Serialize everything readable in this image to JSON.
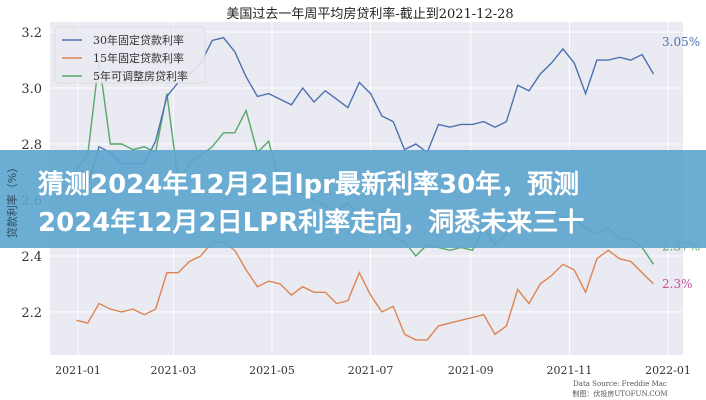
{
  "chart_data": {
    "type": "line",
    "title": "美国过去一年周平均房贷利率-截止到2021-12-28",
    "xlabel": "",
    "ylabel": "贷款利率（%）",
    "ylim": [
      2.046,
      3.236
    ],
    "yticks": [
      2.2,
      2.4,
      2.6,
      2.8,
      3.0,
      3.2
    ],
    "ytick_labels": [
      "2.2",
      "2.4",
      "2.6",
      "2.8",
      "3.0",
      "3.2"
    ],
    "xticks": [
      "2021-01",
      "2021-03",
      "2021-05",
      "2021-07",
      "2021-09",
      "2021-11",
      "2022-01"
    ],
    "start_date": "2020-12-31",
    "interval_days": 7,
    "grid": true,
    "legend_position": "top-left",
    "series": [
      {
        "name": "30年固定贷款利率",
        "color": "#4c72b0",
        "end_label": "3.05%",
        "values": [
          2.67,
          2.65,
          2.79,
          2.77,
          2.73,
          2.73,
          2.73,
          2.81,
          2.97,
          3.02,
          3.05,
          3.09,
          3.17,
          3.18,
          3.13,
          3.04,
          2.97,
          2.98,
          2.96,
          2.94,
          3.0,
          2.95,
          2.99,
          2.96,
          2.93,
          3.02,
          2.98,
          2.9,
          2.88,
          2.78,
          2.8,
          2.77,
          2.87,
          2.86,
          2.87,
          2.87,
          2.88,
          2.86,
          2.88,
          3.01,
          2.99,
          3.05,
          3.09,
          3.14,
          3.09,
          2.98,
          3.1,
          3.1,
          3.11,
          3.1,
          3.12,
          3.05
        ]
      },
      {
        "name": "15年固定贷款利率",
        "color": "#dd8452",
        "end_label": "2.3%",
        "end_label_color": "#c44e9a",
        "values": [
          2.17,
          2.16,
          2.23,
          2.21,
          2.2,
          2.21,
          2.19,
          2.21,
          2.34,
          2.34,
          2.38,
          2.4,
          2.45,
          2.45,
          2.42,
          2.35,
          2.29,
          2.31,
          2.3,
          2.26,
          2.29,
          2.27,
          2.27,
          2.23,
          2.24,
          2.34,
          2.26,
          2.2,
          2.22,
          2.12,
          2.1,
          2.1,
          2.15,
          2.16,
          2.17,
          2.18,
          2.19,
          2.12,
          2.15,
          2.28,
          2.23,
          2.3,
          2.33,
          2.37,
          2.35,
          2.27,
          2.39,
          2.42,
          2.39,
          2.38,
          2.34,
          2.3
        ]
      },
      {
        "name": "5年可调整房贷利率",
        "color": "#55a868",
        "end_label": "2.37%",
        "values": [
          2.71,
          2.76,
          3.1,
          2.8,
          2.8,
          2.78,
          2.79,
          2.77,
          2.98,
          2.67,
          2.73,
          2.76,
          2.79,
          2.84,
          2.84,
          2.92,
          2.77,
          2.81,
          2.65,
          2.63,
          2.62,
          2.6,
          2.58,
          2.56,
          2.59,
          2.54,
          2.56,
          2.52,
          2.47,
          2.45,
          2.4,
          2.44,
          2.43,
          2.42,
          2.43,
          2.42,
          2.5,
          2.44,
          2.48,
          2.52,
          2.55,
          2.56,
          2.55,
          2.54,
          2.53,
          2.5,
          2.48,
          2.5,
          2.46,
          2.46,
          2.43,
          2.37
        ]
      }
    ],
    "source": "Data Source: Freddie Mac",
    "credit": "制图：伏投房UTOFUN.COM"
  },
  "banner": {
    "line1": "猜测2024年12月2日lpr最新利率30年，预测",
    "line2": "2024年12月2日LPR利率走向，洞悉未来三十"
  }
}
